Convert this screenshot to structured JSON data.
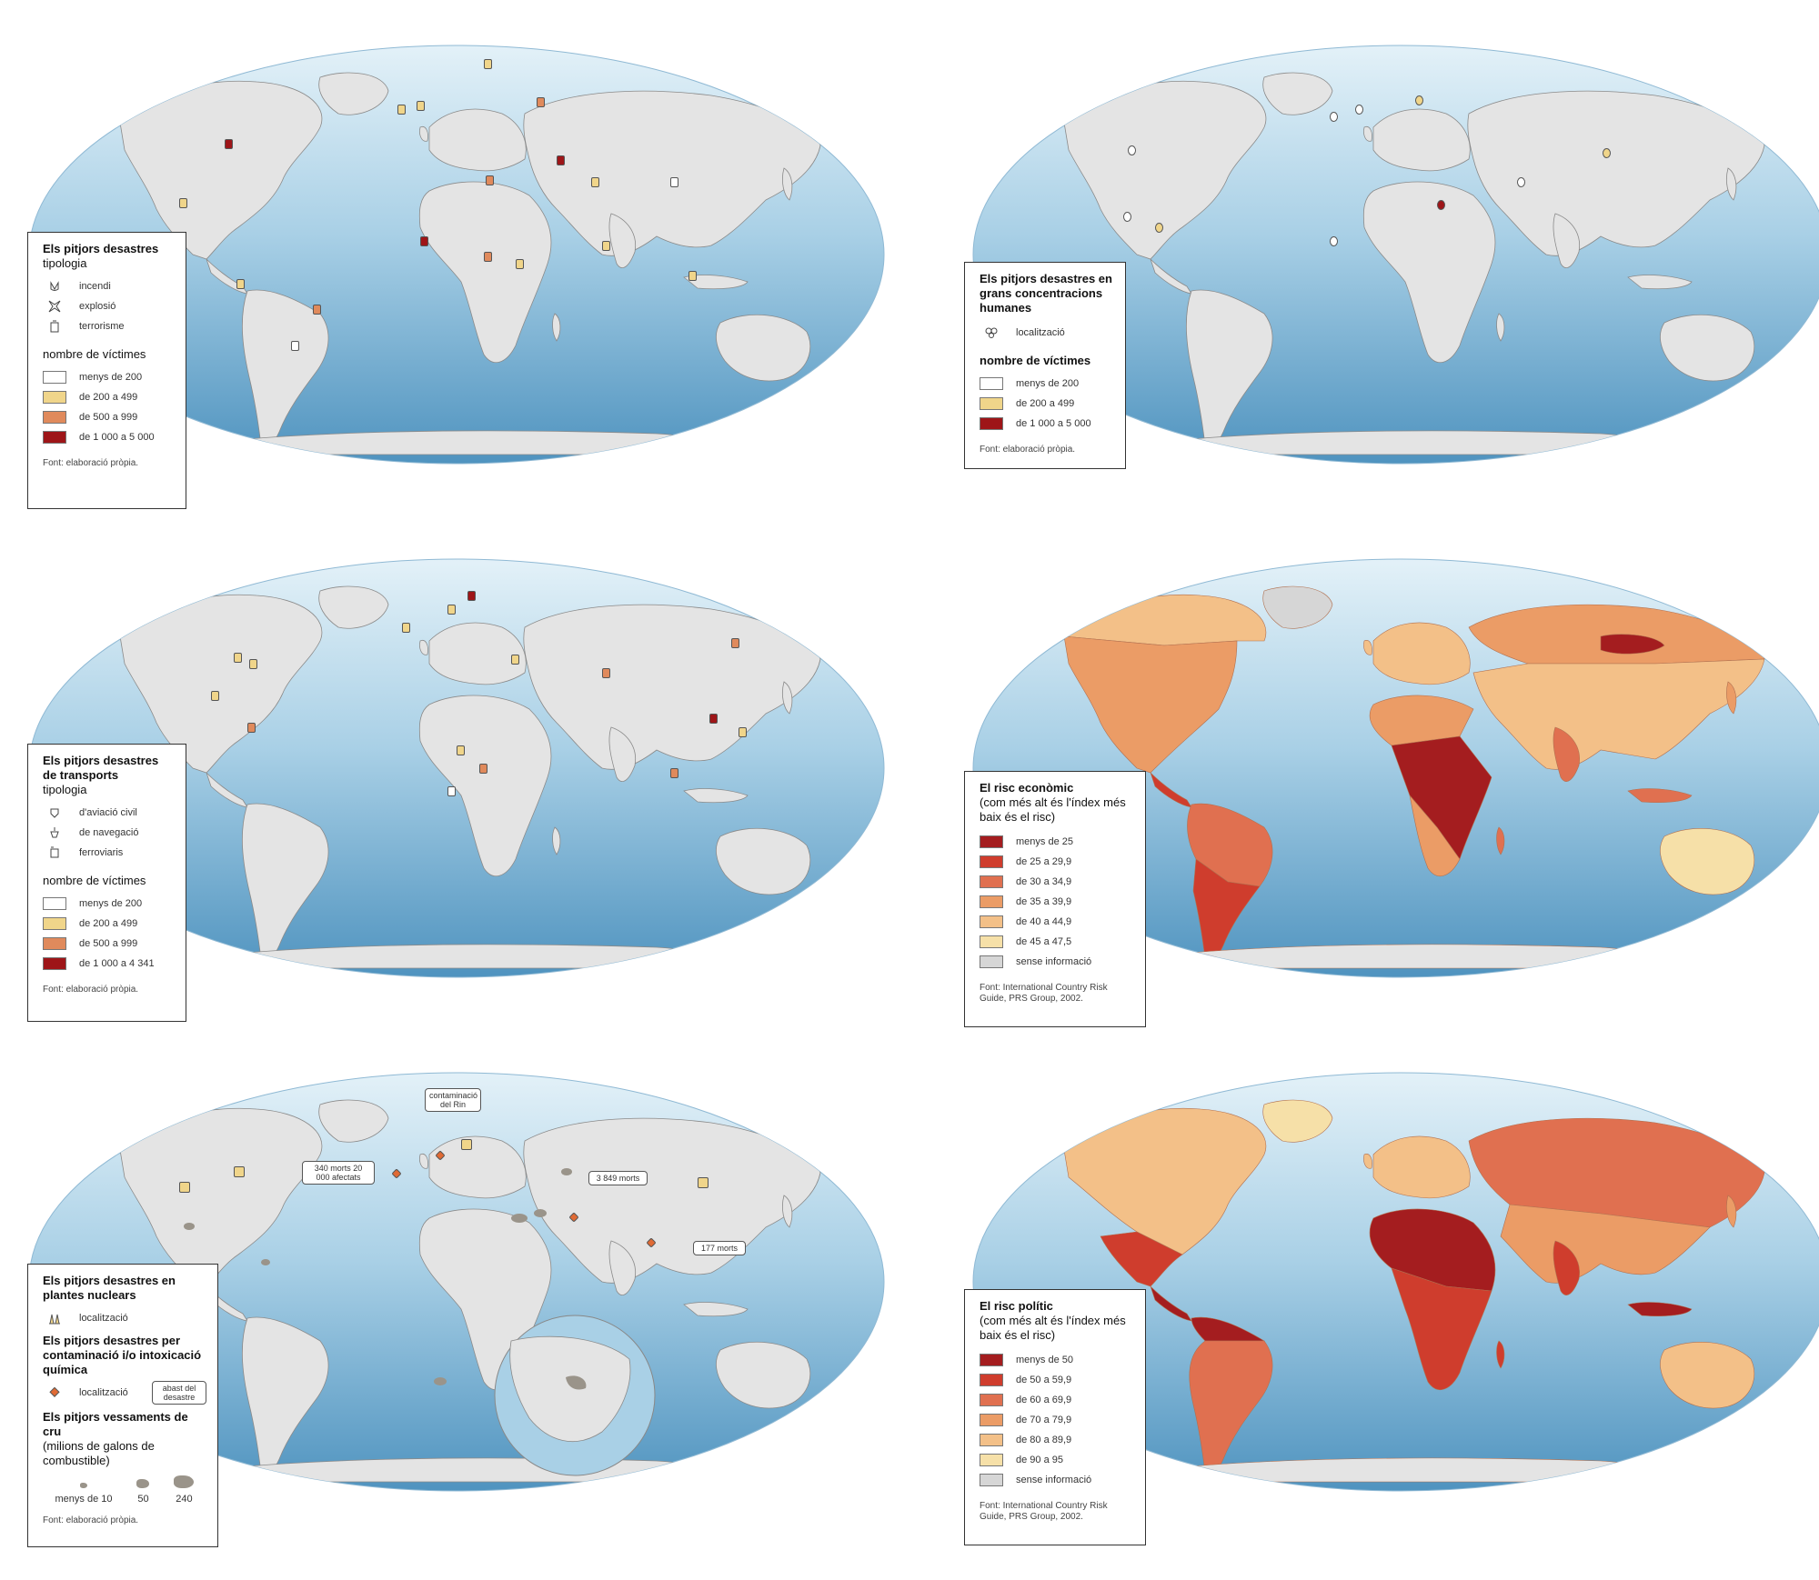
{
  "colors": {
    "ocean_light": "#d5ebf4",
    "ocean_dark": "#5fa2c8",
    "land_grey": "#e4e4e4",
    "class_white": "#ffffff",
    "class_yellow": "#f0d58a",
    "class_orange": "#e08a5c",
    "class_darkred": "#9e1518",
    "risk_1": "#a41d1f",
    "risk_2": "#cf3d2d",
    "risk_3": "#e07050",
    "risk_4": "#eb9c66",
    "risk_5": "#f3c088",
    "risk_6": "#f6e0a8",
    "risk_none": "#d6d6d6"
  },
  "panels": [
    {
      "id": "disasters",
      "legend": {
        "title": "Els pitjors desastres",
        "subtitle": "tipologia",
        "types": [
          {
            "icon": "fire-icon",
            "label": "incendi"
          },
          {
            "icon": "explosion-icon",
            "label": "explosió"
          },
          {
            "icon": "terrorism-icon",
            "label": "terrorisme"
          }
        ],
        "section": "nombre de víctimes",
        "classes": [
          {
            "label": "menys de 200",
            "color": "#ffffff"
          },
          {
            "label": "de 200 a 499",
            "color": "#f0d58a"
          },
          {
            "label": "de 500 a 999",
            "color": "#e08a5c"
          },
          {
            "label": "de 1 000 a  5 000",
            "color": "#9e1518"
          }
        ],
        "source": "Font: elaboració pròpia."
      }
    },
    {
      "id": "concentrations",
      "legend": {
        "title": "Els pitjors desastres en grans concentracions humanes",
        "types": [
          {
            "icon": "location-icon",
            "label": "localització"
          }
        ],
        "section": "nombre de víctimes",
        "classes": [
          {
            "label": "menys de 200",
            "color": "#ffffff"
          },
          {
            "label": "de 200 a 499",
            "color": "#f0d58a"
          },
          {
            "label": "de 1 000 a  5 000",
            "color": "#9e1518"
          }
        ],
        "source": "Font: elaboració pròpia."
      }
    },
    {
      "id": "transport",
      "legend": {
        "title": "Els pitjors desastres de transports",
        "subtitle": "tipologia",
        "types": [
          {
            "icon": "plane-icon",
            "label": "d'aviació civil"
          },
          {
            "icon": "ship-icon",
            "label": "de navegació"
          },
          {
            "icon": "train-icon",
            "label": "ferroviaris"
          }
        ],
        "section": "nombre de víctimes",
        "classes": [
          {
            "label": "menys de 200",
            "color": "#ffffff"
          },
          {
            "label": "de 200 a 499",
            "color": "#f0d58a"
          },
          {
            "label": "de 500 a 999",
            "color": "#e08a5c"
          },
          {
            "label": "de 1 000 a  4 341",
            "color": "#9e1518"
          }
        ],
        "source": "Font: elaboració pròpia."
      }
    },
    {
      "id": "economic-risk",
      "legend": {
        "title": "El risc econòmic",
        "subtitle": "(com més alt és l'índex més baix és el risc)",
        "classes": [
          {
            "label": "menys de 25",
            "color": "#a41d1f"
          },
          {
            "label": "de 25 a 29,9",
            "color": "#cf3d2d"
          },
          {
            "label": "de 30 a 34,9",
            "color": "#e07050"
          },
          {
            "label": "de 35 a 39,9",
            "color": "#eb9c66"
          },
          {
            "label": "de 40 a 44,9",
            "color": "#f3c088"
          },
          {
            "label": "de 45 a 47,5",
            "color": "#f6e0a8"
          },
          {
            "label": "sense informació",
            "color": "#d6d6d6"
          }
        ],
        "source": "Font: International Country Risk Guide, PRS Group, 2002."
      }
    },
    {
      "id": "nuclear-chemical",
      "legend": {
        "title": "Els pitjors desastres en plantes nuclears",
        "loc_label": "localització",
        "title2": "Els pitjors desastres per contaminació i/o intoxicació química",
        "loc_label2": "localització",
        "scope_label": "abast del desastre",
        "title3": "Els pitjors vessaments de cru",
        "subtitle3": "(milions de galons de combustible)",
        "spills": [
          "menys de 10",
          "50",
          "240"
        ],
        "source": "Font: elaboració pròpia."
      },
      "callouts": {
        "rhine": "contaminació del Rin",
        "seveso": "340 morts 20 000 afectats",
        "bhopal": "3 849 morts",
        "pacific": "177 morts"
      }
    },
    {
      "id": "political-risk",
      "legend": {
        "title": "El risc polític",
        "subtitle": "(com més alt és l'índex més baix és el risc)",
        "classes": [
          {
            "label": "menys de 50",
            "color": "#a41d1f"
          },
          {
            "label": "de 50 a 59,9",
            "color": "#cf3d2d"
          },
          {
            "label": "de 60 a 69,9",
            "color": "#e07050"
          },
          {
            "label": "de 70 a 79,9",
            "color": "#eb9c66"
          },
          {
            "label": "de 80 a 89,9",
            "color": "#f3c088"
          },
          {
            "label": "de 90 a 95",
            "color": "#f6e0a8"
          },
          {
            "label": "sense informació",
            "color": "#d6d6d6"
          }
        ],
        "source": "Font: International Country Risk Guide, PRS Group, 2002."
      }
    }
  ]
}
